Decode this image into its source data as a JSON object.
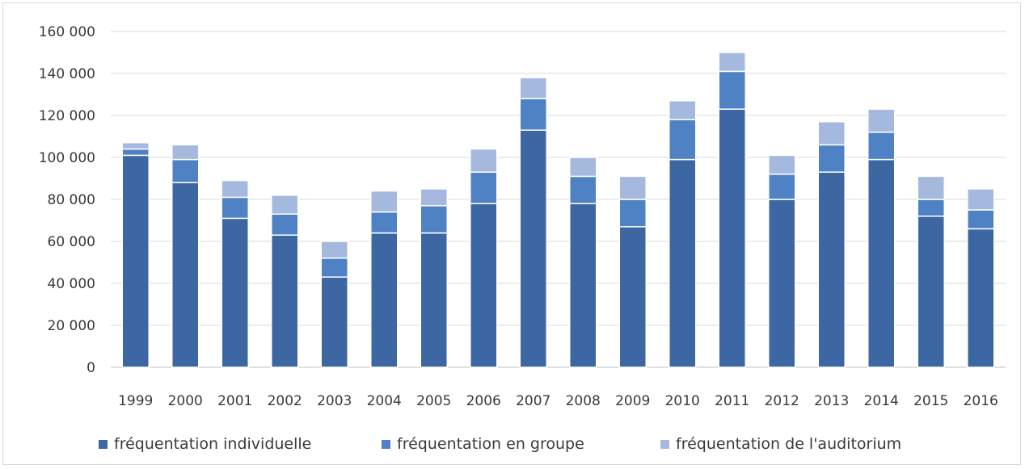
{
  "chart_data": {
    "type": "bar",
    "stacked": true,
    "categories": [
      "1999",
      "2000",
      "2001",
      "2002",
      "2003",
      "2004",
      "2005",
      "2006",
      "2007",
      "2008",
      "2009",
      "2010",
      "2011",
      "2012",
      "2013",
      "2014",
      "2015",
      "2016"
    ],
    "series": [
      {
        "name": "fréquentation individuelle",
        "color": "#3d67a3",
        "values": [
          101000,
          88000,
          71000,
          63000,
          43000,
          64000,
          64000,
          78000,
          113000,
          78000,
          67000,
          99000,
          123000,
          80000,
          93000,
          99000,
          72000,
          66000
        ]
      },
      {
        "name": "fréquentation en groupe",
        "color": "#4f82c4",
        "values": [
          3000,
          11000,
          10000,
          10000,
          9000,
          10000,
          13000,
          15000,
          15000,
          13000,
          13000,
          19000,
          18000,
          12000,
          13000,
          13000,
          8000,
          9000
        ]
      },
      {
        "name": "fréquentation de l'auditorium",
        "color": "#a5b9de",
        "values": [
          3000,
          7000,
          8000,
          9000,
          8000,
          10000,
          8000,
          11000,
          10000,
          9000,
          11000,
          9000,
          9000,
          9000,
          11000,
          11000,
          11000,
          10000
        ]
      }
    ],
    "ylim": [
      0,
      160000
    ],
    "y_ticks": [
      0,
      20000,
      40000,
      60000,
      80000,
      100000,
      120000,
      140000,
      160000
    ],
    "y_tick_labels": [
      "0",
      "20 000",
      "40 000",
      "60 000",
      "80 000",
      "100 000",
      "120 000",
      "140 000",
      "160 000"
    ],
    "grid": true,
    "legend_position": "bottom",
    "title": "",
    "xlabel": "",
    "ylabel": ""
  }
}
